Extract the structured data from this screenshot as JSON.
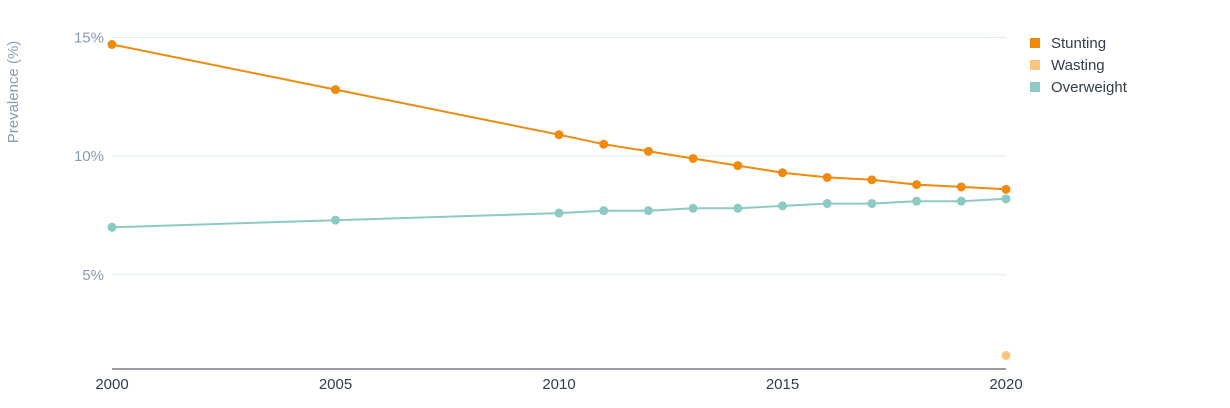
{
  "chart_data": {
    "type": "line",
    "ylabel": "Prevalence (%)",
    "xlim": [
      2000,
      2020
    ],
    "ylim": [
      1.2,
      15.1
    ],
    "x_ticks": [
      2000,
      2005,
      2010,
      2015,
      2020
    ],
    "y_ticks": [
      5,
      10,
      15
    ],
    "y_tick_labels": [
      "5%",
      "10%",
      "15%"
    ],
    "grid": true,
    "legend_position": "top-right",
    "series": [
      {
        "name": "Stunting",
        "color": "#ee8b0c",
        "points": [
          {
            "x": 2000,
            "y": 14.7
          },
          {
            "x": 2005,
            "y": 12.8
          },
          {
            "x": 2010,
            "y": 10.9
          },
          {
            "x": 2011,
            "y": 10.5
          },
          {
            "x": 2012,
            "y": 10.2
          },
          {
            "x": 2013,
            "y": 9.9
          },
          {
            "x": 2014,
            "y": 9.6
          },
          {
            "x": 2015,
            "y": 9.3
          },
          {
            "x": 2016,
            "y": 9.1
          },
          {
            "x": 2017,
            "y": 9.0
          },
          {
            "x": 2018,
            "y": 8.8
          },
          {
            "x": 2019,
            "y": 8.7
          },
          {
            "x": 2020,
            "y": 8.6
          }
        ]
      },
      {
        "name": "Wasting",
        "color": "#fbc57e",
        "points": [
          {
            "x": 2020,
            "y": 1.6
          }
        ]
      },
      {
        "name": "Overweight",
        "color": "#8dcac4",
        "points": [
          {
            "x": 2000,
            "y": 7.0
          },
          {
            "x": 2005,
            "y": 7.3
          },
          {
            "x": 2010,
            "y": 7.6
          },
          {
            "x": 2011,
            "y": 7.7
          },
          {
            "x": 2012,
            "y": 7.7
          },
          {
            "x": 2013,
            "y": 7.8
          },
          {
            "x": 2014,
            "y": 7.8
          },
          {
            "x": 2015,
            "y": 7.9
          },
          {
            "x": 2016,
            "y": 8.0
          },
          {
            "x": 2017,
            "y": 8.0
          },
          {
            "x": 2018,
            "y": 8.1
          },
          {
            "x": 2019,
            "y": 8.1
          },
          {
            "x": 2020,
            "y": 8.2
          }
        ]
      }
    ]
  }
}
